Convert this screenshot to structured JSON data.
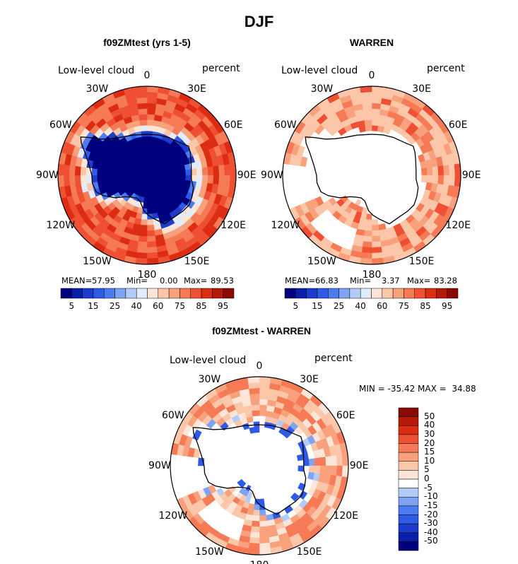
{
  "figure": {
    "season": "DJF",
    "panel1_title": "f09ZMtest (yrs 1-5)",
    "panel2_title": "WARREN",
    "diff_title": "f09ZMtest - WARREN"
  },
  "map": {
    "left_label": "Low-level cloud",
    "right_label": "percent",
    "lon_labels": [
      "0",
      "30E",
      "60E",
      "90E",
      "120E",
      "150E",
      "180",
      "150W",
      "120W",
      "90W",
      "60W",
      "30W"
    ]
  },
  "stats": {
    "p1": {
      "mean_label": "MEAN=",
      "mean": "57.95",
      "min_label": "Min=",
      "min": "0.00",
      "max_label": "Max=",
      "max": "89.53"
    },
    "p2": {
      "mean_label": "MEAN=",
      "mean": "66.83",
      "min_label": "Min=",
      "min": "3.37",
      "max_label": "Max=",
      "max": "83.28"
    },
    "diff": {
      "text": "MIN = -35.42 MAX =  34.88"
    }
  },
  "colorbar_abs": {
    "colors": [
      "#00007f",
      "#0a1fa8",
      "#1d3ccc",
      "#2f5ae6",
      "#4a7cf0",
      "#7ea3f2",
      "#b3ccf7",
      "#e3ecfb",
      "#fde6d7",
      "#fcc6a9",
      "#f9a07d",
      "#f57a55",
      "#ef5033",
      "#dc2c12",
      "#b51a08",
      "#8a0a02"
    ],
    "labels": [
      "5",
      "15",
      "25",
      "40",
      "60",
      "75",
      "85",
      "95"
    ]
  },
  "colorbar_diff": {
    "colors": [
      "#8a0a02",
      "#b51a08",
      "#dc2c12",
      "#ef5033",
      "#f57a55",
      "#f9a07d",
      "#fcc6a9",
      "#fde6d7",
      "#ffffff",
      "#b3ccf7",
      "#7ea3f2",
      "#4a7cf0",
      "#2f5ae6",
      "#1d3ccc",
      "#0a1fa8",
      "#00007f"
    ],
    "labels": [
      "50",
      "40",
      "30",
      "20",
      "15",
      "10",
      "5",
      "0",
      "-5",
      "-10",
      "-15",
      "-20",
      "-30",
      "-40",
      "-50"
    ]
  },
  "chart_data": [
    {
      "type": "heatmap",
      "title": "f09ZMtest (yrs 1-5)",
      "projection": "South polar stereographic",
      "variable": "Low-level cloud",
      "units": "percent",
      "levels": [
        5,
        10,
        15,
        20,
        25,
        30,
        40,
        50,
        60,
        70,
        75,
        80,
        85,
        90,
        95
      ],
      "mean": 57.95,
      "min": 0.0,
      "max": 89.53,
      "zonal_mean_from_outer_edge": [
        85,
        82,
        80,
        75,
        62,
        20,
        2
      ]
    },
    {
      "type": "heatmap",
      "title": "WARREN",
      "projection": "South polar stereographic",
      "variable": "Low-level cloud",
      "units": "percent",
      "levels": [
        5,
        10,
        15,
        20,
        25,
        30,
        40,
        50,
        60,
        70,
        75,
        80,
        85,
        90,
        95
      ],
      "mean": 66.83,
      "min": 3.37,
      "max": 83.28,
      "zonal_mean_from_outer_edge": [
        70,
        68,
        66,
        64,
        62
      ]
    },
    {
      "type": "heatmap",
      "title": "f09ZMtest - WARREN",
      "projection": "South polar stereographic",
      "variable": "Low-level cloud",
      "units": "percent",
      "levels": [
        -50,
        -40,
        -30,
        -20,
        -15,
        -10,
        -5,
        0,
        5,
        10,
        15,
        20,
        30,
        40,
        50
      ],
      "min": -35.42,
      "max": 34.88,
      "zonal_mean_from_outer_edge": [
        12,
        10,
        8,
        5,
        -10
      ]
    }
  ]
}
